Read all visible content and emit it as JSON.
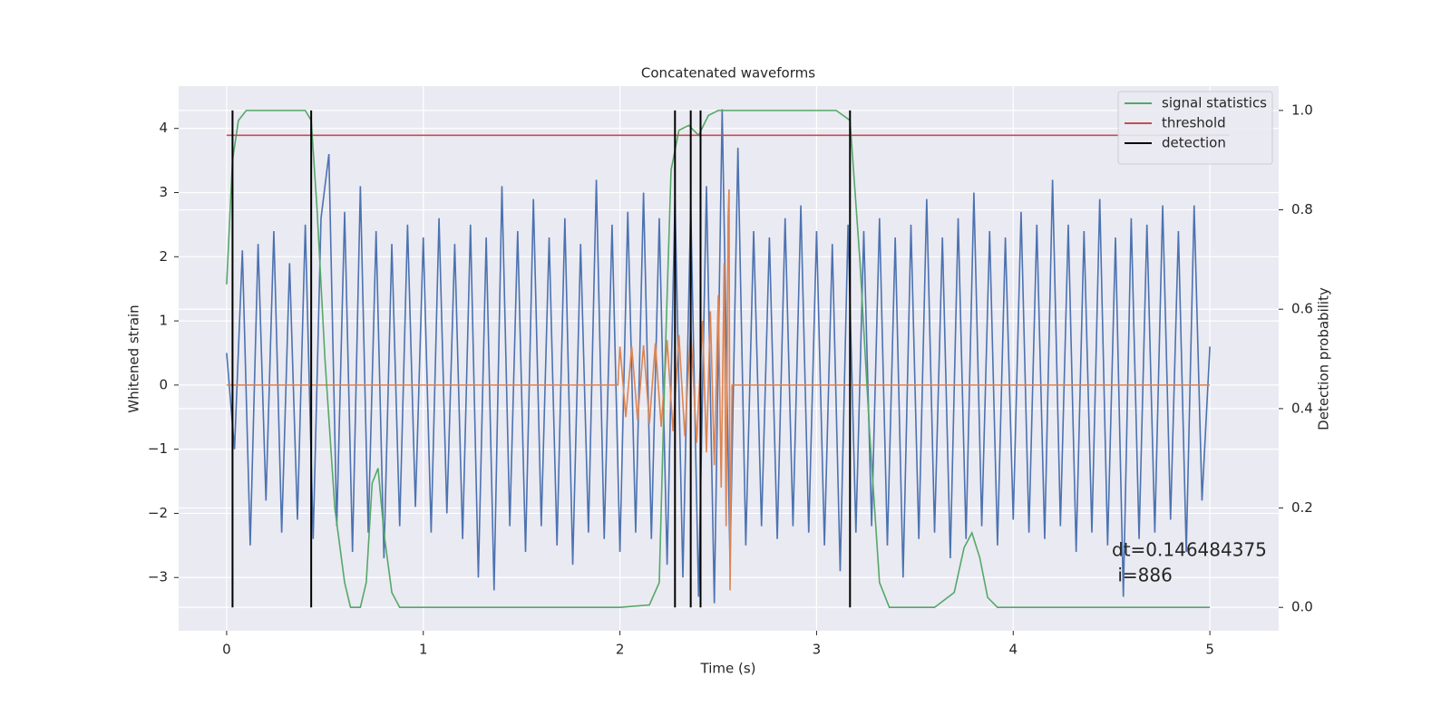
{
  "chart_data": {
    "type": "line",
    "title": "Concatenated waveforms",
    "xlabel": "Time (s)",
    "ylabel": "Whitened strain",
    "y2label": "Detection probability",
    "xlim": [
      -0.244,
      5.35
    ],
    "ylim": [
      -3.83,
      4.66
    ],
    "y2lim": [
      -0.047,
      1.049
    ],
    "xticks": [
      0,
      1,
      2,
      3,
      4,
      5
    ],
    "yticks": [
      {
        "value": -3,
        "label": "−3"
      },
      {
        "value": -2,
        "label": "−2"
      },
      {
        "value": -1,
        "label": "−1"
      },
      0,
      1,
      2,
      3,
      4
    ],
    "y2ticks": [
      {
        "value": 0,
        "label": "0.0"
      },
      0.2,
      0.4,
      0.6,
      0.8,
      {
        "value": 1,
        "label": "1.0"
      }
    ],
    "grid": true,
    "legend": "upper right",
    "annotation": [
      "dt=0.146484375",
      " i=886"
    ],
    "series": [
      {
        "color": "#4c72b0",
        "axis": "y",
        "x": [
          0,
          0.04,
          0.08,
          0.12,
          0.16,
          0.2,
          0.24,
          0.28,
          0.32,
          0.36,
          0.4,
          0.44,
          0.48,
          0.52,
          0.56,
          0.6,
          0.64,
          0.68,
          0.72,
          0.76,
          0.8,
          0.84,
          0.88,
          0.92,
          0.96,
          1,
          1.04,
          1.08,
          1.12,
          1.16,
          1.2,
          1.24,
          1.28,
          1.32,
          1.36,
          1.4,
          1.44,
          1.48,
          1.52,
          1.56,
          1.6,
          1.64,
          1.68,
          1.72,
          1.76,
          1.8,
          1.84,
          1.88,
          1.92,
          1.96,
          2,
          2.04,
          2.08,
          2.12,
          2.16,
          2.2,
          2.24,
          2.28,
          2.32,
          2.36,
          2.4,
          2.44,
          2.48,
          2.52,
          2.56,
          2.6,
          2.64,
          2.68,
          2.72,
          2.76,
          2.8,
          2.84,
          2.88,
          2.92,
          2.96,
          3,
          3.04,
          3.08,
          3.12,
          3.16,
          3.2,
          3.24,
          3.28,
          3.32,
          3.36,
          3.4,
          3.44,
          3.48,
          3.52,
          3.56,
          3.6,
          3.64,
          3.68,
          3.72,
          3.76,
          3.8,
          3.84,
          3.88,
          3.92,
          3.96,
          4,
          4.04,
          4.08,
          4.12,
          4.16,
          4.2,
          4.24,
          4.28,
          4.32,
          4.36,
          4.4,
          4.44,
          4.48,
          4.52,
          4.56,
          4.6,
          4.64,
          4.68,
          4.72,
          4.76,
          4.8,
          4.84,
          4.88,
          4.92,
          4.96,
          5
        ],
        "values": [
          0.5,
          -1.0,
          2.1,
          -2.5,
          2.2,
          -1.8,
          2.4,
          -2.3,
          1.9,
          -2.1,
          2.5,
          -2.4,
          2.6,
          3.6,
          -2.2,
          2.7,
          -2.6,
          3.1,
          -2.3,
          2.4,
          -2.7,
          2.2,
          -2.2,
          2.5,
          -1.9,
          2.3,
          -2.3,
          2.6,
          -2.0,
          2.2,
          -2.4,
          2.5,
          -3.0,
          2.3,
          -3.2,
          3.1,
          -2.2,
          2.4,
          -2.6,
          2.9,
          -2.2,
          2.3,
          -2.5,
          2.6,
          -2.8,
          2.2,
          -2.3,
          3.2,
          -2.4,
          2.5,
          -2.6,
          2.7,
          -2.3,
          3.0,
          -2.4,
          2.6,
          -2.8,
          2.9,
          -3.0,
          2.8,
          -3.3,
          3.1,
          -3.4,
          4.3,
          -2.8,
          3.7,
          -2.5,
          2.4,
          -2.2,
          2.3,
          -2.4,
          2.6,
          -2.2,
          2.8,
          -2.3,
          2.4,
          -2.5,
          2.2,
          -2.9,
          2.5,
          -2.3,
          2.4,
          -2.2,
          2.6,
          -2.5,
          2.3,
          -3.0,
          2.5,
          -2.4,
          2.9,
          -2.3,
          2.3,
          -2.7,
          2.6,
          -2.4,
          3.0,
          -2.2,
          2.4,
          -2.5,
          2.3,
          -2.1,
          2.7,
          -2.3,
          2.5,
          -2.4,
          3.2,
          -2.2,
          2.5,
          -2.6,
          2.4,
          -2.3,
          2.9,
          -2.5,
          2.3,
          -3.3,
          2.6,
          -2.4,
          2.5,
          -2.3,
          2.8,
          -2.1,
          2.4,
          -2.6,
          2.8,
          -1.8,
          0.6
        ]
      },
      {
        "color": "#dd8452",
        "axis": "y",
        "x": [
          0,
          1.99,
          2.0,
          2.03,
          2.06,
          2.09,
          2.12,
          2.15,
          2.18,
          2.21,
          2.24,
          2.27,
          2.3,
          2.33,
          2.36,
          2.39,
          2.42,
          2.44,
          2.46,
          2.48,
          2.5,
          2.515,
          2.53,
          2.54,
          2.55,
          2.555,
          2.56,
          2.57,
          5.0
        ],
        "values": [
          0,
          0,
          0.6,
          -0.5,
          0.6,
          -0.55,
          0.62,
          -0.6,
          0.65,
          -0.65,
          0.7,
          -0.72,
          0.78,
          -0.8,
          0.88,
          -0.9,
          1.0,
          -1.05,
          1.15,
          -1.25,
          1.4,
          -1.6,
          1.9,
          -2.2,
          2.6,
          3.05,
          -3.2,
          0,
          0
        ]
      },
      {
        "name": "signal statistics",
        "color": "#55a868",
        "axis": "y2",
        "x": [
          0,
          0.03,
          0.06,
          0.1,
          0.4,
          0.43,
          0.46,
          0.5,
          0.55,
          0.6,
          0.63,
          0.68,
          0.71,
          0.74,
          0.77,
          0.8,
          0.84,
          0.88,
          1.0,
          2.0,
          2.15,
          2.2,
          2.23,
          2.26,
          2.3,
          2.35,
          2.4,
          2.45,
          2.5,
          3.1,
          3.17,
          3.22,
          3.27,
          3.32,
          3.37,
          3.6,
          3.7,
          3.75,
          3.79,
          3.83,
          3.87,
          3.92,
          4.5,
          5.0
        ],
        "values": [
          0.65,
          0.9,
          0.98,
          1.0,
          1.0,
          0.98,
          0.8,
          0.5,
          0.2,
          0.05,
          0.0,
          0.0,
          0.05,
          0.25,
          0.28,
          0.15,
          0.03,
          0.0,
          0.0,
          0.0,
          0.005,
          0.05,
          0.5,
          0.88,
          0.96,
          0.97,
          0.95,
          0.99,
          1.0,
          1.0,
          0.98,
          0.7,
          0.35,
          0.05,
          0.0,
          0.0,
          0.03,
          0.12,
          0.15,
          0.1,
          0.02,
          0.0,
          0.0,
          0.0
        ]
      },
      {
        "name": "threshold",
        "color": "#c44e52",
        "axis": "y2",
        "x": [
          0,
          5.1
        ],
        "values": [
          0.95,
          0.95
        ]
      },
      {
        "name": "detection",
        "color": "#000000",
        "axis": "y2",
        "type": "vlines",
        "x": [
          0.03,
          0.43,
          2.28,
          2.36,
          2.41,
          3.17
        ],
        "span": [
          0,
          1
        ]
      }
    ]
  }
}
